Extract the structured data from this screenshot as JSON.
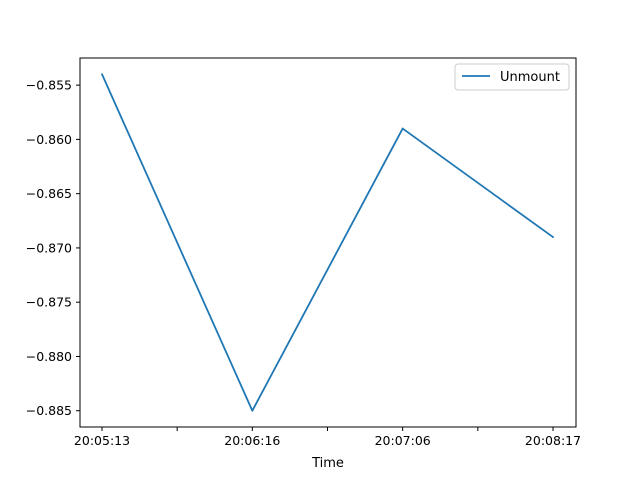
{
  "chart_data": {
    "type": "line",
    "title": "",
    "xlabel": "Time",
    "ylabel": "",
    "x": [
      "20:05:13",
      "20:06:16",
      "20:07:06",
      "20:08:17"
    ],
    "series": [
      {
        "name": "Unmount",
        "values": [
          -0.854,
          -0.885,
          -0.859,
          -0.869
        ],
        "color": "#1f77b4"
      }
    ],
    "ylim": [
      -0.8865,
      -0.8525
    ],
    "yticks": [
      -0.855,
      -0.86,
      -0.865,
      -0.87,
      -0.875,
      -0.88,
      -0.885
    ],
    "ytick_labels": [
      "−0.855",
      "−0.860",
      "−0.865",
      "−0.870",
      "−0.875",
      "−0.880",
      "−0.885"
    ],
    "minor_xticks": [
      0.5,
      1.5,
      2.5
    ],
    "grid": false,
    "legend_position": "upper-right"
  }
}
